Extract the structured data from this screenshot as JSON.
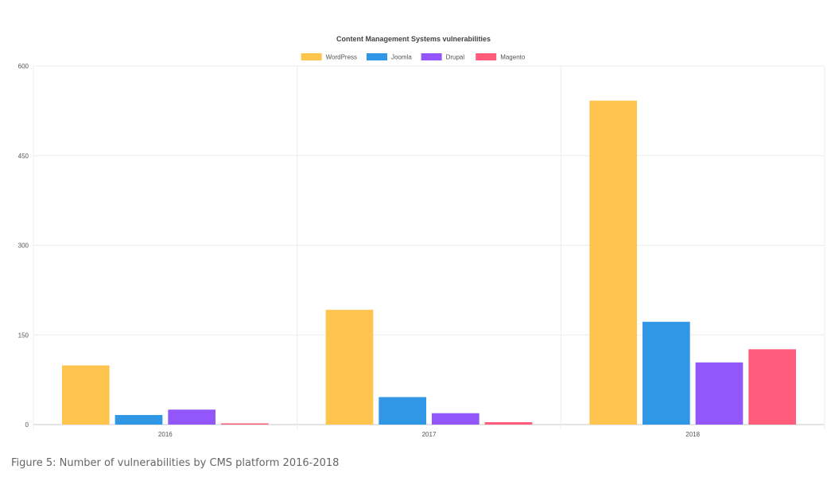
{
  "chart_data": {
    "type": "bar",
    "title": "Content Management Systems vulnerabilities",
    "categories": [
      "2016",
      "2017",
      "2018"
    ],
    "series": [
      {
        "name": "WordPress",
        "color": "#ffc44d",
        "values": [
          99,
          192,
          542
        ]
      },
      {
        "name": "Joomla",
        "color": "#3097e6",
        "values": [
          16,
          46,
          172
        ]
      },
      {
        "name": "Drupal",
        "color": "#9356fa",
        "values": [
          25,
          19,
          104
        ]
      },
      {
        "name": "Magento",
        "color": "#ff5c7c",
        "values": [
          2,
          4,
          126
        ]
      }
    ],
    "ylim": [
      0,
      600
    ],
    "yticks": [
      0,
      150,
      300,
      450,
      600
    ],
    "grid": true,
    "legend_position": "top"
  },
  "caption": "Figure 5: Number of vulnerabilities by CMS platform 2016-2018"
}
